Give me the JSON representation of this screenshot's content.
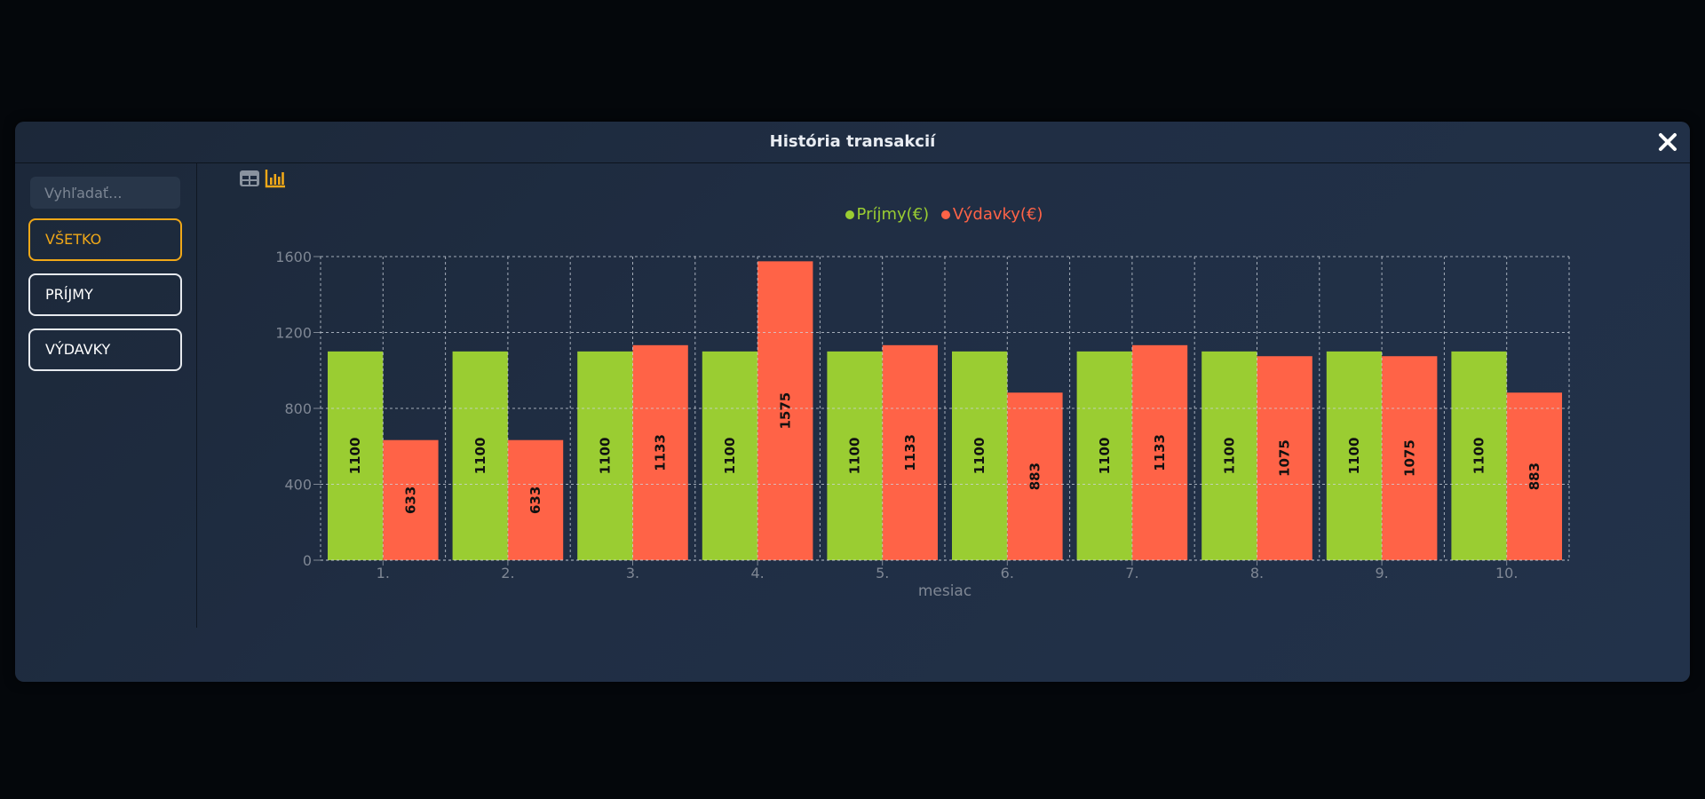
{
  "modal": {
    "title": "História transakcií",
    "close_label": "✕"
  },
  "sidebar": {
    "search_placeholder": "Vyhľadať...",
    "filters": [
      {
        "label": "VŠETKO",
        "active": true
      },
      {
        "label": "PRÍJMY",
        "active": false
      },
      {
        "label": "VÝDAVKY",
        "active": false
      }
    ]
  },
  "view_toggle": {
    "icons": [
      "table-icon",
      "bar-chart-icon"
    ],
    "active": "bar-chart-icon"
  },
  "colors": {
    "income": "#9acd32",
    "expense": "#ff6347",
    "accent": "#f0a818",
    "grid": "#cfd6df",
    "tick": "#7f8794"
  },
  "chart_data": {
    "type": "bar",
    "categories": [
      "1.",
      "2.",
      "3.",
      "4.",
      "5.",
      "6.",
      "7.",
      "8.",
      "9.",
      "10."
    ],
    "series": [
      {
        "name": "Príjmy(€)",
        "values": [
          1100,
          1100,
          1100,
          1100,
          1100,
          1100,
          1100,
          1100,
          1100,
          1100
        ]
      },
      {
        "name": "Výdavky(€)",
        "values": [
          633,
          633,
          1133,
          1575,
          1133,
          883,
          1133,
          1075,
          1075,
          883
        ]
      }
    ],
    "xlabel": "mesiac",
    "ylabel": "",
    "ylim": [
      0,
      1600
    ],
    "yticks": [
      0,
      400,
      800,
      1200,
      1600
    ],
    "grid": true,
    "legend": "top-center",
    "data_labels": "inside-bar-rotated"
  }
}
